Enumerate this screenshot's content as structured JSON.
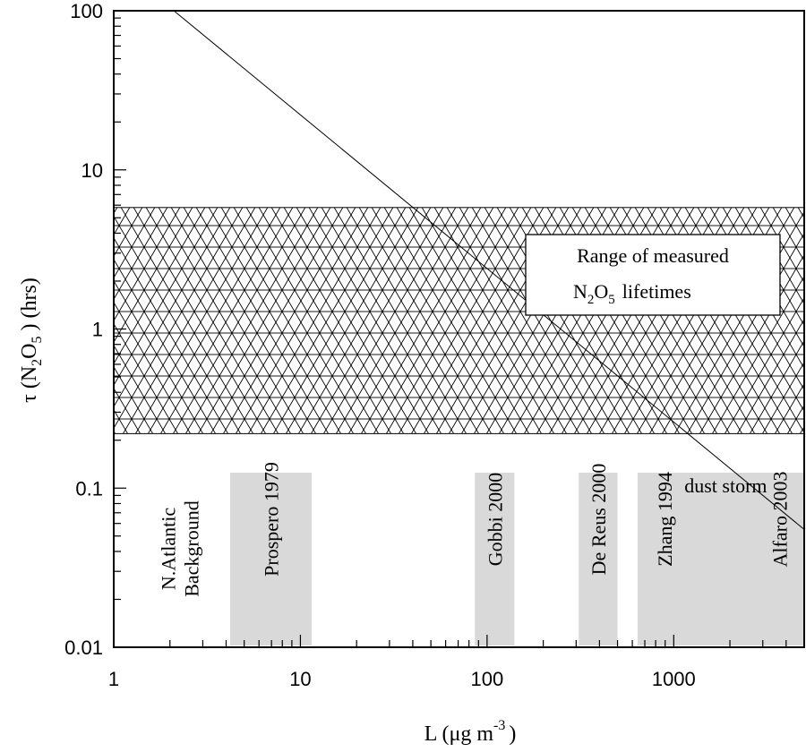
{
  "chart_data": {
    "type": "line",
    "x_scale": "log",
    "y_scale": "log",
    "xlim": [
      1,
      5000
    ],
    "ylim": [
      0.01,
      100
    ],
    "xlabel": {
      "main": "L (μg m",
      "sup": "-3",
      "close": ")"
    },
    "ylabel": {
      "tau": "τ (N",
      "sub1": "2",
      "o": "O",
      "sub2": "5",
      "rest": ") (hrs)"
    },
    "x_ticks": [
      {
        "value": 1,
        "label": "1"
      },
      {
        "value": 10,
        "label": "10"
      },
      {
        "value": 100,
        "label": "100"
      },
      {
        "value": 1000,
        "label": "1000"
      }
    ],
    "y_ticks": [
      {
        "value": 0.01,
        "label": "0.01"
      },
      {
        "value": 0.1,
        "label": "0.1"
      },
      {
        "value": 1,
        "label": "1"
      },
      {
        "value": 10,
        "label": "10"
      },
      {
        "value": 100,
        "label": "100"
      }
    ],
    "line": {
      "x": [
        2.1,
        5000
      ],
      "y": [
        100,
        0.055
      ]
    },
    "hatched_band": {
      "y_low": 0.22,
      "y_high": 5.8
    },
    "legend": {
      "line1": "Range of measured",
      "line2_n": "N",
      "line2_sub1": "2",
      "line2_o": "O",
      "line2_sub2": "5",
      "line2_rest": "lifetimes"
    },
    "annotation": {
      "text": "dust storm",
      "x": 1900,
      "y": 0.15
    },
    "label_background": {
      "line1": "N.Atlantic",
      "line2": "Background",
      "x": 2.6
    },
    "boxes": [
      {
        "label": "Prospero 1979",
        "x_start": 4.2,
        "x_end": 11.5,
        "y_top": 0.125
      },
      {
        "label": "Gobbi 2000",
        "x_start": 86,
        "x_end": 140,
        "y_top": 0.125
      },
      {
        "label": "De Reus 2000",
        "x_start": 310,
        "x_end": 500,
        "y_top": 0.125
      },
      {
        "label": "Zhang 1994",
        "x_start": 640,
        "x_end": 5000,
        "y_top": 0.125
      }
    ],
    "box_label_extra": {
      "label": "Alfaro 2003",
      "x": 3700
    },
    "colors": {
      "box": "#d9d9d9",
      "line": "#000000",
      "hatch": "#000000"
    }
  }
}
